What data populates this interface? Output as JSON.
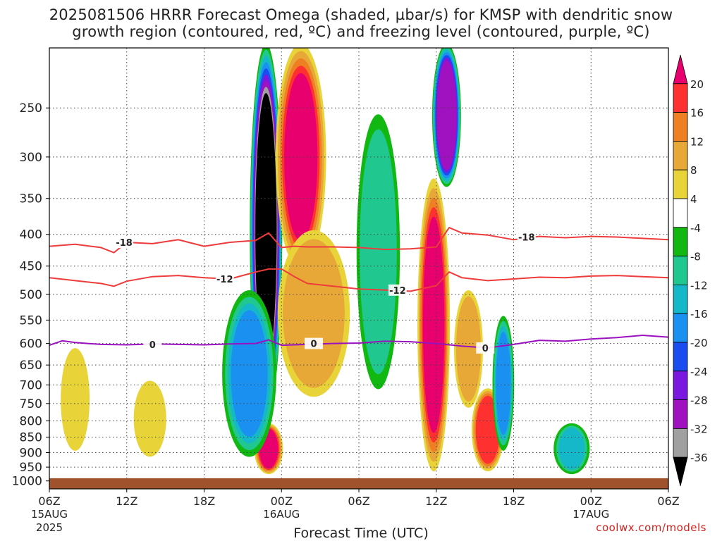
{
  "title_line1": "2025081506 HRRR Forecast Omega (shaded, µbar/s) for KMSP with dendritic snow",
  "title_line2": "growth region (contoured, red, ºC) and freezing level (contoured, purple, ºC)",
  "credit": "coolwx.com/models",
  "chart_data": {
    "type": "heatmap",
    "title": "2025081506 HRRR Forecast Omega (shaded, µbar/s) for KMSP with dendritic snow growth region (contoured, red, ºC) and freezing level (contoured, purple, ºC)",
    "xlabel": "Forecast Time (UTC)",
    "x_range_hours": [
      0,
      48
    ],
    "x_ticks": [
      {
        "hour": 0,
        "label": "06Z",
        "sub": "15AUG",
        "sub2": "2025"
      },
      {
        "hour": 6,
        "label": "12Z",
        "sub": "",
        "sub2": ""
      },
      {
        "hour": 12,
        "label": "18Z",
        "sub": "",
        "sub2": ""
      },
      {
        "hour": 18,
        "label": "00Z",
        "sub": "16AUG",
        "sub2": ""
      },
      {
        "hour": 24,
        "label": "06Z",
        "sub": "",
        "sub2": ""
      },
      {
        "hour": 30,
        "label": "12Z",
        "sub": "",
        "sub2": ""
      },
      {
        "hour": 36,
        "label": "18Z",
        "sub": "",
        "sub2": ""
      },
      {
        "hour": 42,
        "label": "00Z",
        "sub": "17AUG",
        "sub2": ""
      },
      {
        "hour": 48,
        "label": "06Z",
        "sub": "",
        "sub2": ""
      }
    ],
    "y_range_hpa": [
      200,
      1030
    ],
    "y_ticks": [
      "250",
      "300",
      "350",
      "400",
      "450",
      "500",
      "550",
      "600",
      "650",
      "700",
      "750",
      "800",
      "850",
      "900",
      "950",
      "1000"
    ],
    "grid": true,
    "ground": {
      "top_hpa": 990,
      "color": "#a0522d"
    },
    "colorbar": {
      "labels": [
        "20",
        "16",
        "12",
        "8",
        "4",
        "-4",
        "-8",
        "-12",
        "-16",
        "-20",
        "-24",
        "-28",
        "-32",
        "-36"
      ],
      "colors": [
        "#e8006e",
        "#ff3030",
        "#ee7f22",
        "#e8a838",
        "#e8d438",
        "#ffffff",
        "#12b812",
        "#20c890",
        "#14b8c8",
        "#1a90f0",
        "#1a4cf0",
        "#7a18e0",
        "#a012c0",
        "#a0a0a0",
        "#000000"
      ]
    },
    "omega_features": [
      {
        "hour": 16.8,
        "p_top": 200,
        "p_bot": 780,
        "halfwidth": 0.9,
        "value": -40
      },
      {
        "hour": 17.0,
        "p_top": 820,
        "p_bot": 960,
        "halfwidth": 0.8,
        "value": 20
      },
      {
        "hour": 19.5,
        "p_top": 200,
        "p_bot": 450,
        "halfwidth": 1.4,
        "value": 20
      },
      {
        "hour": 20.5,
        "p_top": 400,
        "p_bot": 720,
        "halfwidth": 2.0,
        "value": 10
      },
      {
        "hour": 15.5,
        "p_top": 500,
        "p_bot": 900,
        "halfwidth": 1.5,
        "value": -16
      },
      {
        "hour": 29.8,
        "p_top": 330,
        "p_bot": 950,
        "halfwidth": 0.9,
        "value": 20
      },
      {
        "hour": 30.8,
        "p_top": 200,
        "p_bot": 330,
        "halfwidth": 0.8,
        "value": -30
      },
      {
        "hour": 25.5,
        "p_top": 260,
        "p_bot": 700,
        "halfwidth": 1.2,
        "value": -10
      },
      {
        "hour": 32.5,
        "p_top": 500,
        "p_bot": 750,
        "halfwidth": 0.8,
        "value": 10
      },
      {
        "hour": 34.0,
        "p_top": 720,
        "p_bot": 950,
        "halfwidth": 0.9,
        "value": 18
      },
      {
        "hour": 35.2,
        "p_top": 550,
        "p_bot": 880,
        "halfwidth": 0.6,
        "value": -16
      },
      {
        "hour": 40.5,
        "p_top": 820,
        "p_bot": 960,
        "halfwidth": 1.0,
        "value": -12
      },
      {
        "hour": 7.8,
        "p_top": 700,
        "p_bot": 900,
        "halfwidth": 0.9,
        "value": 6
      },
      {
        "hour": 2.0,
        "p_top": 620,
        "p_bot": 880,
        "halfwidth": 0.8,
        "value": 6
      }
    ],
    "series": [
      {
        "name": "-18",
        "color": "#ee3b3b",
        "x": [
          0,
          2,
          4,
          5,
          6,
          8,
          10,
          12,
          14,
          16,
          17,
          18,
          19,
          20,
          22,
          24,
          26,
          28,
          30,
          31,
          32,
          34,
          36,
          38,
          40,
          42,
          44,
          46,
          48
        ],
        "y": [
          418,
          415,
          420,
          428,
          412,
          414,
          408,
          418,
          412,
          409,
          398,
          420,
          418,
          419,
          419,
          420,
          423,
          422,
          419,
          390,
          398,
          401,
          408,
          403,
          405,
          403,
          404,
          406,
          408
        ]
      },
      {
        "name": "-12",
        "color": "#ee3b3b",
        "x": [
          0,
          2,
          4,
          5,
          6,
          8,
          10,
          12,
          14,
          16,
          17,
          18,
          19,
          20,
          22,
          24,
          26,
          28,
          30,
          31,
          32,
          34,
          36,
          38,
          40,
          42,
          44,
          46,
          48
        ],
        "y": [
          470,
          475,
          480,
          485,
          476,
          468,
          466,
          470,
          472,
          460,
          455,
          455,
          468,
          480,
          485,
          490,
          492,
          494,
          484,
          460,
          470,
          475,
          472,
          469,
          470,
          467,
          466,
          468,
          470
        ]
      },
      {
        "name": "0",
        "color": "#9a12c0",
        "x": [
          0,
          1,
          2,
          4,
          6,
          8,
          10,
          12,
          14,
          16,
          17,
          18,
          20,
          22,
          24,
          26,
          28,
          30,
          32,
          34,
          36,
          38,
          40,
          42,
          44,
          46,
          48
        ],
        "y": [
          604,
          594,
          598,
          602,
          603,
          601,
          602,
          603,
          601,
          600,
          592,
          604,
          602,
          600,
          599,
          595,
          596,
          600,
          606,
          610,
          602,
          593,
          595,
          590,
          587,
          582,
          586
        ]
      }
    ],
    "contour_labels": [
      {
        "text": "-18",
        "series": "-18",
        "hour": 5.8,
        "p": 412
      },
      {
        "text": "-18",
        "series": "-18",
        "hour": 37.0,
        "p": 404
      },
      {
        "text": "-12",
        "series": "-12",
        "hour": 13.6,
        "p": 472
      },
      {
        "text": "-12",
        "series": "-12",
        "hour": 27.0,
        "p": 492
      },
      {
        "text": "0",
        "series": "0",
        "hour": 8.0,
        "p": 602
      },
      {
        "text": "0",
        "series": "0",
        "hour": 20.5,
        "p": 600
      },
      {
        "text": "0",
        "series": "0",
        "hour": 33.8,
        "p": 610
      }
    ]
  }
}
